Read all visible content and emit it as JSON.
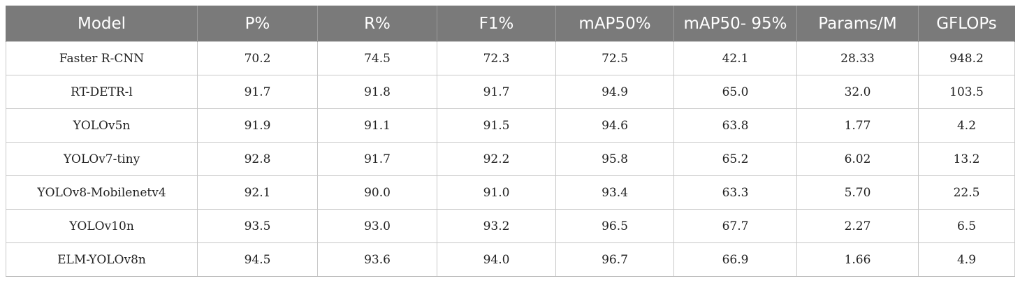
{
  "table": {
    "headers": [
      "Model",
      "P%",
      "R%",
      "F1%",
      "mAP50%",
      "mAP50- 95%",
      "Params/M",
      "GFLOPs"
    ],
    "rows": [
      [
        "Faster R-CNN",
        "70.2",
        "74.5",
        "72.3",
        "72.5",
        "42.1",
        "28.33",
        "948.2"
      ],
      [
        "RT-DETR-l",
        "91.7",
        "91.8",
        "91.7",
        "94.9",
        "65.0",
        "32.0",
        "103.5"
      ],
      [
        "YOLOv5n",
        "91.9",
        "91.1",
        "91.5",
        "94.6",
        "63.8",
        "1.77",
        "4.2"
      ],
      [
        "YOLOv7-tiny",
        "92.8",
        "91.7",
        "92.2",
        "95.8",
        "65.2",
        "6.02",
        "13.2"
      ],
      [
        "YOLOv8-Mobilenetv4",
        "92.1",
        "90.0",
        "91.0",
        "93.4",
        "63.3",
        "5.70",
        "22.5"
      ],
      [
        "YOLOv10n",
        "93.5",
        "93.0",
        "93.2",
        "96.5",
        "67.7",
        "2.27",
        "6.5"
      ],
      [
        "ELM-YOLOv8n",
        "94.5",
        "93.6",
        "94.0",
        "96.7",
        "66.9",
        "1.66",
        "4.9"
      ]
    ]
  },
  "colors": {
    "header_bg": "#7a7a7a",
    "header_text": "#ffffff",
    "grid_line": "#c8c8c8"
  }
}
